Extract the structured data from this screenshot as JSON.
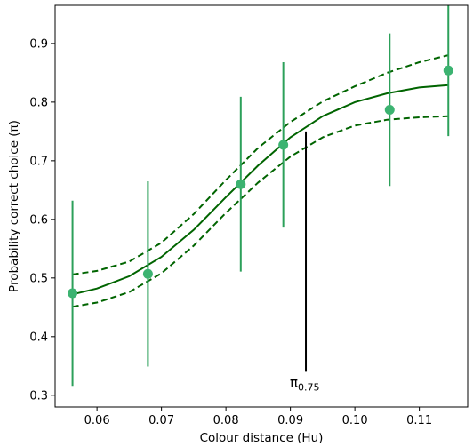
{
  "chart_data": {
    "type": "scatter",
    "xlabel": "Colour distance (Hu)",
    "ylabel": "Probability correct choice (π)",
    "xlim": [
      0.0535,
      0.1175
    ],
    "ylim": [
      0.28,
      0.965
    ],
    "x_ticks": [
      0.06,
      0.07,
      0.08,
      0.09,
      0.1,
      0.11
    ],
    "x_tick_labels": [
      "0.06",
      "0.07",
      "0.08",
      "0.09",
      "0.10",
      "0.11"
    ],
    "y_ticks": [
      0.3,
      0.4,
      0.5,
      0.6,
      0.7,
      0.8,
      0.9
    ],
    "y_tick_labels": [
      "0.3",
      "0.4",
      "0.5",
      "0.6",
      "0.7",
      "0.8",
      "0.9"
    ],
    "grid": false,
    "colors": {
      "points": "#3cb371",
      "errorbars": "#2ca05a",
      "fit": "#006400",
      "threshold": "#000000"
    },
    "points": [
      {
        "x": 0.0562,
        "y": 0.474,
        "ylow": 0.316,
        "yhigh": 0.632
      },
      {
        "x": 0.0679,
        "y": 0.507,
        "ylow": 0.349,
        "yhigh": 0.665
      },
      {
        "x": 0.0823,
        "y": 0.66,
        "ylow": 0.511,
        "yhigh": 0.809
      },
      {
        "x": 0.0889,
        "y": 0.727,
        "ylow": 0.586,
        "yhigh": 0.868
      },
      {
        "x": 0.1054,
        "y": 0.787,
        "ylow": 0.657,
        "yhigh": 0.917
      },
      {
        "x": 0.1145,
        "y": 0.854,
        "ylow": 0.742,
        "yhigh": 0.966
      }
    ],
    "fit_curve": {
      "x": [
        0.0562,
        0.06,
        0.065,
        0.07,
        0.075,
        0.08,
        0.085,
        0.09,
        0.095,
        0.1,
        0.105,
        0.11,
        0.1145
      ],
      "y": [
        0.472,
        0.482,
        0.503,
        0.536,
        0.582,
        0.638,
        0.692,
        0.74,
        0.776,
        0.8,
        0.815,
        0.825,
        0.829
      ]
    },
    "fit_upper": {
      "x": [
        0.0562,
        0.06,
        0.065,
        0.07,
        0.075,
        0.08,
        0.085,
        0.09,
        0.095,
        0.1,
        0.105,
        0.11,
        0.1145
      ],
      "y": [
        0.506,
        0.512,
        0.528,
        0.56,
        0.609,
        0.667,
        0.722,
        0.766,
        0.801,
        0.827,
        0.85,
        0.868,
        0.88
      ]
    },
    "fit_lower": {
      "x": [
        0.0562,
        0.06,
        0.065,
        0.07,
        0.075,
        0.08,
        0.085,
        0.09,
        0.095,
        0.1,
        0.105,
        0.11,
        0.1145
      ],
      "y": [
        0.451,
        0.458,
        0.476,
        0.508,
        0.555,
        0.611,
        0.663,
        0.707,
        0.74,
        0.76,
        0.77,
        0.774,
        0.776
      ]
    },
    "threshold": {
      "x": 0.0924,
      "y_top": 0.75,
      "y_bottom": 0.34,
      "label_main": "π",
      "label_sub": "0.75"
    }
  }
}
